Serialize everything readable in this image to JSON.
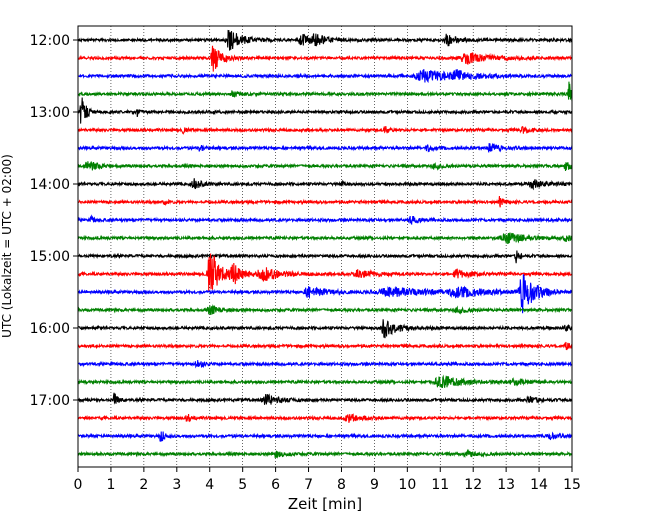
{
  "chart_data": {
    "type": "line",
    "title": "",
    "xlabel": "Zeit  [min]",
    "ylabel": "UTC (Lokalzeit = UTC + 02:00)",
    "xlim": [
      0,
      15
    ],
    "xticks": [
      "0",
      "1",
      "2",
      "3",
      "4",
      "5",
      "6",
      "7",
      "8",
      "9",
      "10",
      "11",
      "12",
      "13",
      "14",
      "15"
    ],
    "ytick_labels": [
      "12:00",
      "13:00",
      "14:00",
      "15:00",
      "16:00",
      "17:00"
    ],
    "ytick_rows": [
      0,
      4,
      8,
      12,
      16,
      20
    ],
    "grid": "x-dotted",
    "row_colors": [
      "#000000",
      "#ff0000",
      "#0000ff",
      "#008000"
    ],
    "rows": [
      {
        "time": "12:00",
        "color": "#000000",
        "events": [
          [
            4.6,
            11,
            0.35
          ],
          [
            6.8,
            5,
            0.4
          ],
          [
            7.2,
            5,
            0.3
          ],
          [
            11.2,
            6,
            0.3
          ]
        ]
      },
      {
        "time": "12:15",
        "color": "#ff0000",
        "events": [
          [
            4.1,
            13,
            0.25
          ],
          [
            11.8,
            5,
            0.7
          ]
        ]
      },
      {
        "time": "12:30",
        "color": "#0000ff",
        "events": [
          [
            10.5,
            6,
            0.9
          ],
          [
            11.5,
            4,
            0.4
          ]
        ]
      },
      {
        "time": "12:45",
        "color": "#008000",
        "events": [
          [
            4.7,
            3,
            0.2
          ],
          [
            14.9,
            14,
            0.15
          ]
        ]
      },
      {
        "time": "13:00",
        "color": "#000000",
        "events": [
          [
            0.1,
            20,
            0.12
          ],
          [
            1.8,
            6,
            0.05
          ]
        ]
      },
      {
        "time": "13:15",
        "color": "#ff0000",
        "events": [
          [
            3.2,
            4,
            0.1
          ],
          [
            9.3,
            5,
            0.1
          ],
          [
            13.5,
            4,
            0.2
          ]
        ]
      },
      {
        "time": "13:30",
        "color": "#0000ff",
        "events": [
          [
            3.7,
            3,
            0.15
          ],
          [
            10.6,
            3,
            0.15
          ],
          [
            12.5,
            4,
            0.3
          ]
        ]
      },
      {
        "time": "13:45",
        "color": "#008000",
        "events": [
          [
            0.3,
            5,
            0.3
          ],
          [
            10.8,
            3,
            0.2
          ],
          [
            14.8,
            4,
            0.2
          ]
        ]
      },
      {
        "time": "14:00",
        "color": "#000000",
        "events": [
          [
            3.5,
            6,
            0.2
          ],
          [
            8.0,
            3,
            0.1
          ],
          [
            13.8,
            4,
            0.4
          ]
        ]
      },
      {
        "time": "14:15",
        "color": "#ff0000",
        "events": [
          [
            2.6,
            3,
            0.1
          ],
          [
            12.8,
            5,
            0.1
          ]
        ]
      },
      {
        "time": "14:30",
        "color": "#0000ff",
        "events": [
          [
            0.4,
            3,
            0.1
          ],
          [
            10.1,
            4,
            0.2
          ]
        ]
      },
      {
        "time": "14:45",
        "color": "#008000",
        "events": [
          [
            13.0,
            6,
            0.5
          ],
          [
            14.8,
            3,
            0.2
          ]
        ]
      },
      {
        "time": "15:00",
        "color": "#000000",
        "events": [
          [
            13.3,
            7,
            0.1
          ]
        ]
      },
      {
        "time": "15:15",
        "color": "#ff0000",
        "events": [
          [
            4.0,
            30,
            0.25
          ],
          [
            4.7,
            10,
            0.3
          ],
          [
            5.6,
            7,
            0.5
          ],
          [
            8.5,
            4,
            0.5
          ],
          [
            11.5,
            4,
            0.4
          ]
        ]
      },
      {
        "time": "15:30",
        "color": "#0000ff",
        "events": [
          [
            7.0,
            5,
            0.5
          ],
          [
            9.5,
            4,
            1.5
          ],
          [
            11.5,
            4,
            0.8
          ],
          [
            13.5,
            20,
            0.35
          ]
        ]
      },
      {
        "time": "15:45",
        "color": "#008000",
        "events": [
          [
            4.0,
            4,
            0.3
          ],
          [
            11.5,
            3,
            0.3
          ]
        ]
      },
      {
        "time": "16:00",
        "color": "#000000",
        "events": [
          [
            9.3,
            10,
            0.35
          ],
          [
            14.8,
            3,
            0.2
          ]
        ]
      },
      {
        "time": "16:15",
        "color": "#ff0000",
        "events": [
          [
            14.8,
            3,
            0.2
          ]
        ]
      },
      {
        "time": "16:30",
        "color": "#0000ff",
        "events": [
          [
            3.6,
            5,
            0.15
          ]
        ]
      },
      {
        "time": "16:45",
        "color": "#008000",
        "events": [
          [
            11.0,
            7,
            0.6
          ],
          [
            13.2,
            3,
            0.3
          ]
        ]
      },
      {
        "time": "17:00",
        "color": "#000000",
        "events": [
          [
            1.1,
            7,
            0.1
          ],
          [
            5.7,
            5,
            0.4
          ],
          [
            13.7,
            3,
            0.3
          ]
        ]
      },
      {
        "time": "17:15",
        "color": "#ff0000",
        "events": [
          [
            3.3,
            5,
            0.1
          ],
          [
            8.2,
            4,
            0.4
          ]
        ]
      },
      {
        "time": "17:30",
        "color": "#0000ff",
        "events": [
          [
            2.5,
            8,
            0.1
          ],
          [
            14.3,
            4,
            0.2
          ]
        ]
      },
      {
        "time": "17:45",
        "color": "#008000",
        "events": [
          [
            6.0,
            3,
            0.3
          ],
          [
            11.8,
            3,
            0.3
          ]
        ]
      }
    ]
  }
}
